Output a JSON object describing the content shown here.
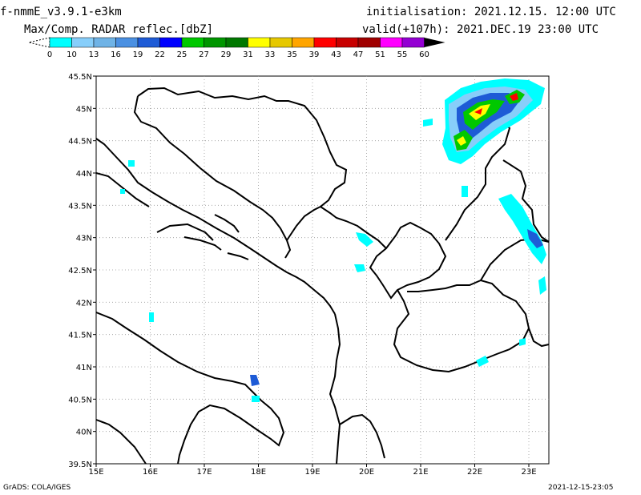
{
  "header": {
    "model": "f-nmmE_v3.9.1-e3km",
    "product": "Max/Comp. RADAR reflec.[dbZ]",
    "initialisation": "initialisation: 2021.12.15. 12:00 UTC",
    "valid": "valid(+107h): 2021.DEC.19 23:00 UTC"
  },
  "legend": {
    "labels": [
      "0",
      "10",
      "13",
      "16",
      "19",
      "22",
      "25",
      "27",
      "29",
      "31",
      "33",
      "35",
      "39",
      "43",
      "47",
      "51",
      "55",
      "60"
    ],
    "colors": [
      "#00ffff",
      "#87cefa",
      "#6fb3e6",
      "#4a90e2",
      "#1e5bd6",
      "#0000ff",
      "#00c800",
      "#009600",
      "#007800",
      "#ffff00",
      "#e6c800",
      "#ffa500",
      "#ff0000",
      "#c80000",
      "#a00000",
      "#ff00ff",
      "#9400d3"
    ]
  },
  "axes": {
    "lat_labels": [
      "45.5N",
      "45N",
      "44.5N",
      "44N",
      "43.5N",
      "43N",
      "42.5N",
      "42N",
      "41.5N",
      "41N",
      "40.5N",
      "40N",
      "39.5N"
    ],
    "lon_labels": [
      "15E",
      "16E",
      "17E",
      "18E",
      "19E",
      "20E",
      "21E",
      "22E",
      "23E"
    ]
  },
  "footer": {
    "left": "GrADS: COLA/IGES",
    "right": "2021-12-15-23:05"
  }
}
